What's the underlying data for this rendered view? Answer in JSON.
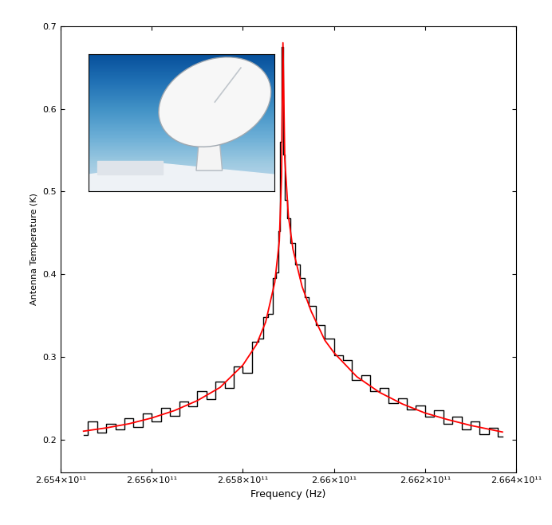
{
  "chart_data": {
    "type": "line",
    "x_label": "Frequency (Hz)",
    "y_label": "Antenna Temperature (K)",
    "xlim": [
      265400000000.0,
      266400000000.0
    ],
    "ylim": [
      0.16,
      0.7
    ],
    "xticks": [
      {
        "value": 265400000000.0,
        "label": "2.654×10¹¹"
      },
      {
        "value": 265600000000.0,
        "label": "2.656×10¹¹"
      },
      {
        "value": 265800000000.0,
        "label": "2.658×10¹¹"
      },
      {
        "value": 266000000000.0,
        "label": "2.66×10¹¹"
      },
      {
        "value": 266200000000.0,
        "label": "2.662×10¹¹"
      },
      {
        "value": 266400000000.0,
        "label": "2.664×10¹¹"
      }
    ],
    "yticks": [
      0.2,
      0.3,
      0.4,
      0.5,
      0.6,
      0.7
    ],
    "grid": false,
    "series": [
      {
        "color": "#000000",
        "line_style": "steps",
        "x": [
          265450000000.0,
          265470000000.0,
          265490000000.0,
          265510000000.0,
          265530000000.0,
          265550000000.0,
          265570000000.0,
          265590000000.0,
          265610000000.0,
          265630000000.0,
          265650000000.0,
          265670000000.0,
          265690000000.0,
          265710000000.0,
          265730000000.0,
          265750000000.0,
          265770000000.0,
          265790000000.0,
          265810000000.0,
          265830000000.0,
          265840000000.0,
          265850000000.0,
          265860000000.0,
          265870000000.0,
          265875000000.0,
          265880000000.0,
          265884000000.0,
          265887000000.0,
          265890000000.0,
          265894000000.0,
          265900000000.0,
          265910000000.0,
          265920000000.0,
          265930000000.0,
          265940000000.0,
          265950000000.0,
          265970000000.0,
          265990000000.0,
          266010000000.0,
          266030000000.0,
          266050000000.0,
          266070000000.0,
          266090000000.0,
          266110000000.0,
          266130000000.0,
          266150000000.0,
          266170000000.0,
          266190000000.0,
          266210000000.0,
          266230000000.0,
          266250000000.0,
          266270000000.0,
          266290000000.0,
          266310000000.0,
          266330000000.0,
          266350000000.0,
          266370000000.0
        ],
        "values": [
          0.205,
          0.222,
          0.208,
          0.219,
          0.212,
          0.226,
          0.215,
          0.231,
          0.222,
          0.238,
          0.229,
          0.246,
          0.24,
          0.258,
          0.249,
          0.27,
          0.262,
          0.288,
          0.281,
          0.318,
          0.322,
          0.348,
          0.352,
          0.395,
          0.402,
          0.452,
          0.56,
          0.675,
          0.545,
          0.49,
          0.468,
          0.438,
          0.412,
          0.395,
          0.372,
          0.362,
          0.338,
          0.322,
          0.302,
          0.296,
          0.272,
          0.278,
          0.258,
          0.262,
          0.244,
          0.25,
          0.236,
          0.241,
          0.228,
          0.235,
          0.219,
          0.228,
          0.212,
          0.222,
          0.206,
          0.214,
          0.203
        ]
      },
      {
        "color": "#ff0000",
        "line_style": "solid",
        "x": [
          265450000000.0,
          265500000000.0,
          265550000000.0,
          265600000000.0,
          265650000000.0,
          265700000000.0,
          265750000000.0,
          265800000000.0,
          265830000000.0,
          265850000000.0,
          265870000000.0,
          265880000000.0,
          265885000000.0,
          265888000000.0,
          265892000000.0,
          265900000000.0,
          265910000000.0,
          265930000000.0,
          265950000000.0,
          265980000000.0,
          266000000000.0,
          266050000000.0,
          266100000000.0,
          266150000000.0,
          266200000000.0,
          266250000000.0,
          266300000000.0,
          266370000000.0
        ],
        "values": [
          0.21,
          0.214,
          0.219,
          0.226,
          0.235,
          0.247,
          0.263,
          0.29,
          0.315,
          0.342,
          0.39,
          0.44,
          0.52,
          0.68,
          0.54,
          0.47,
          0.43,
          0.385,
          0.355,
          0.32,
          0.305,
          0.276,
          0.257,
          0.243,
          0.232,
          0.224,
          0.217,
          0.209
        ]
      }
    ]
  }
}
